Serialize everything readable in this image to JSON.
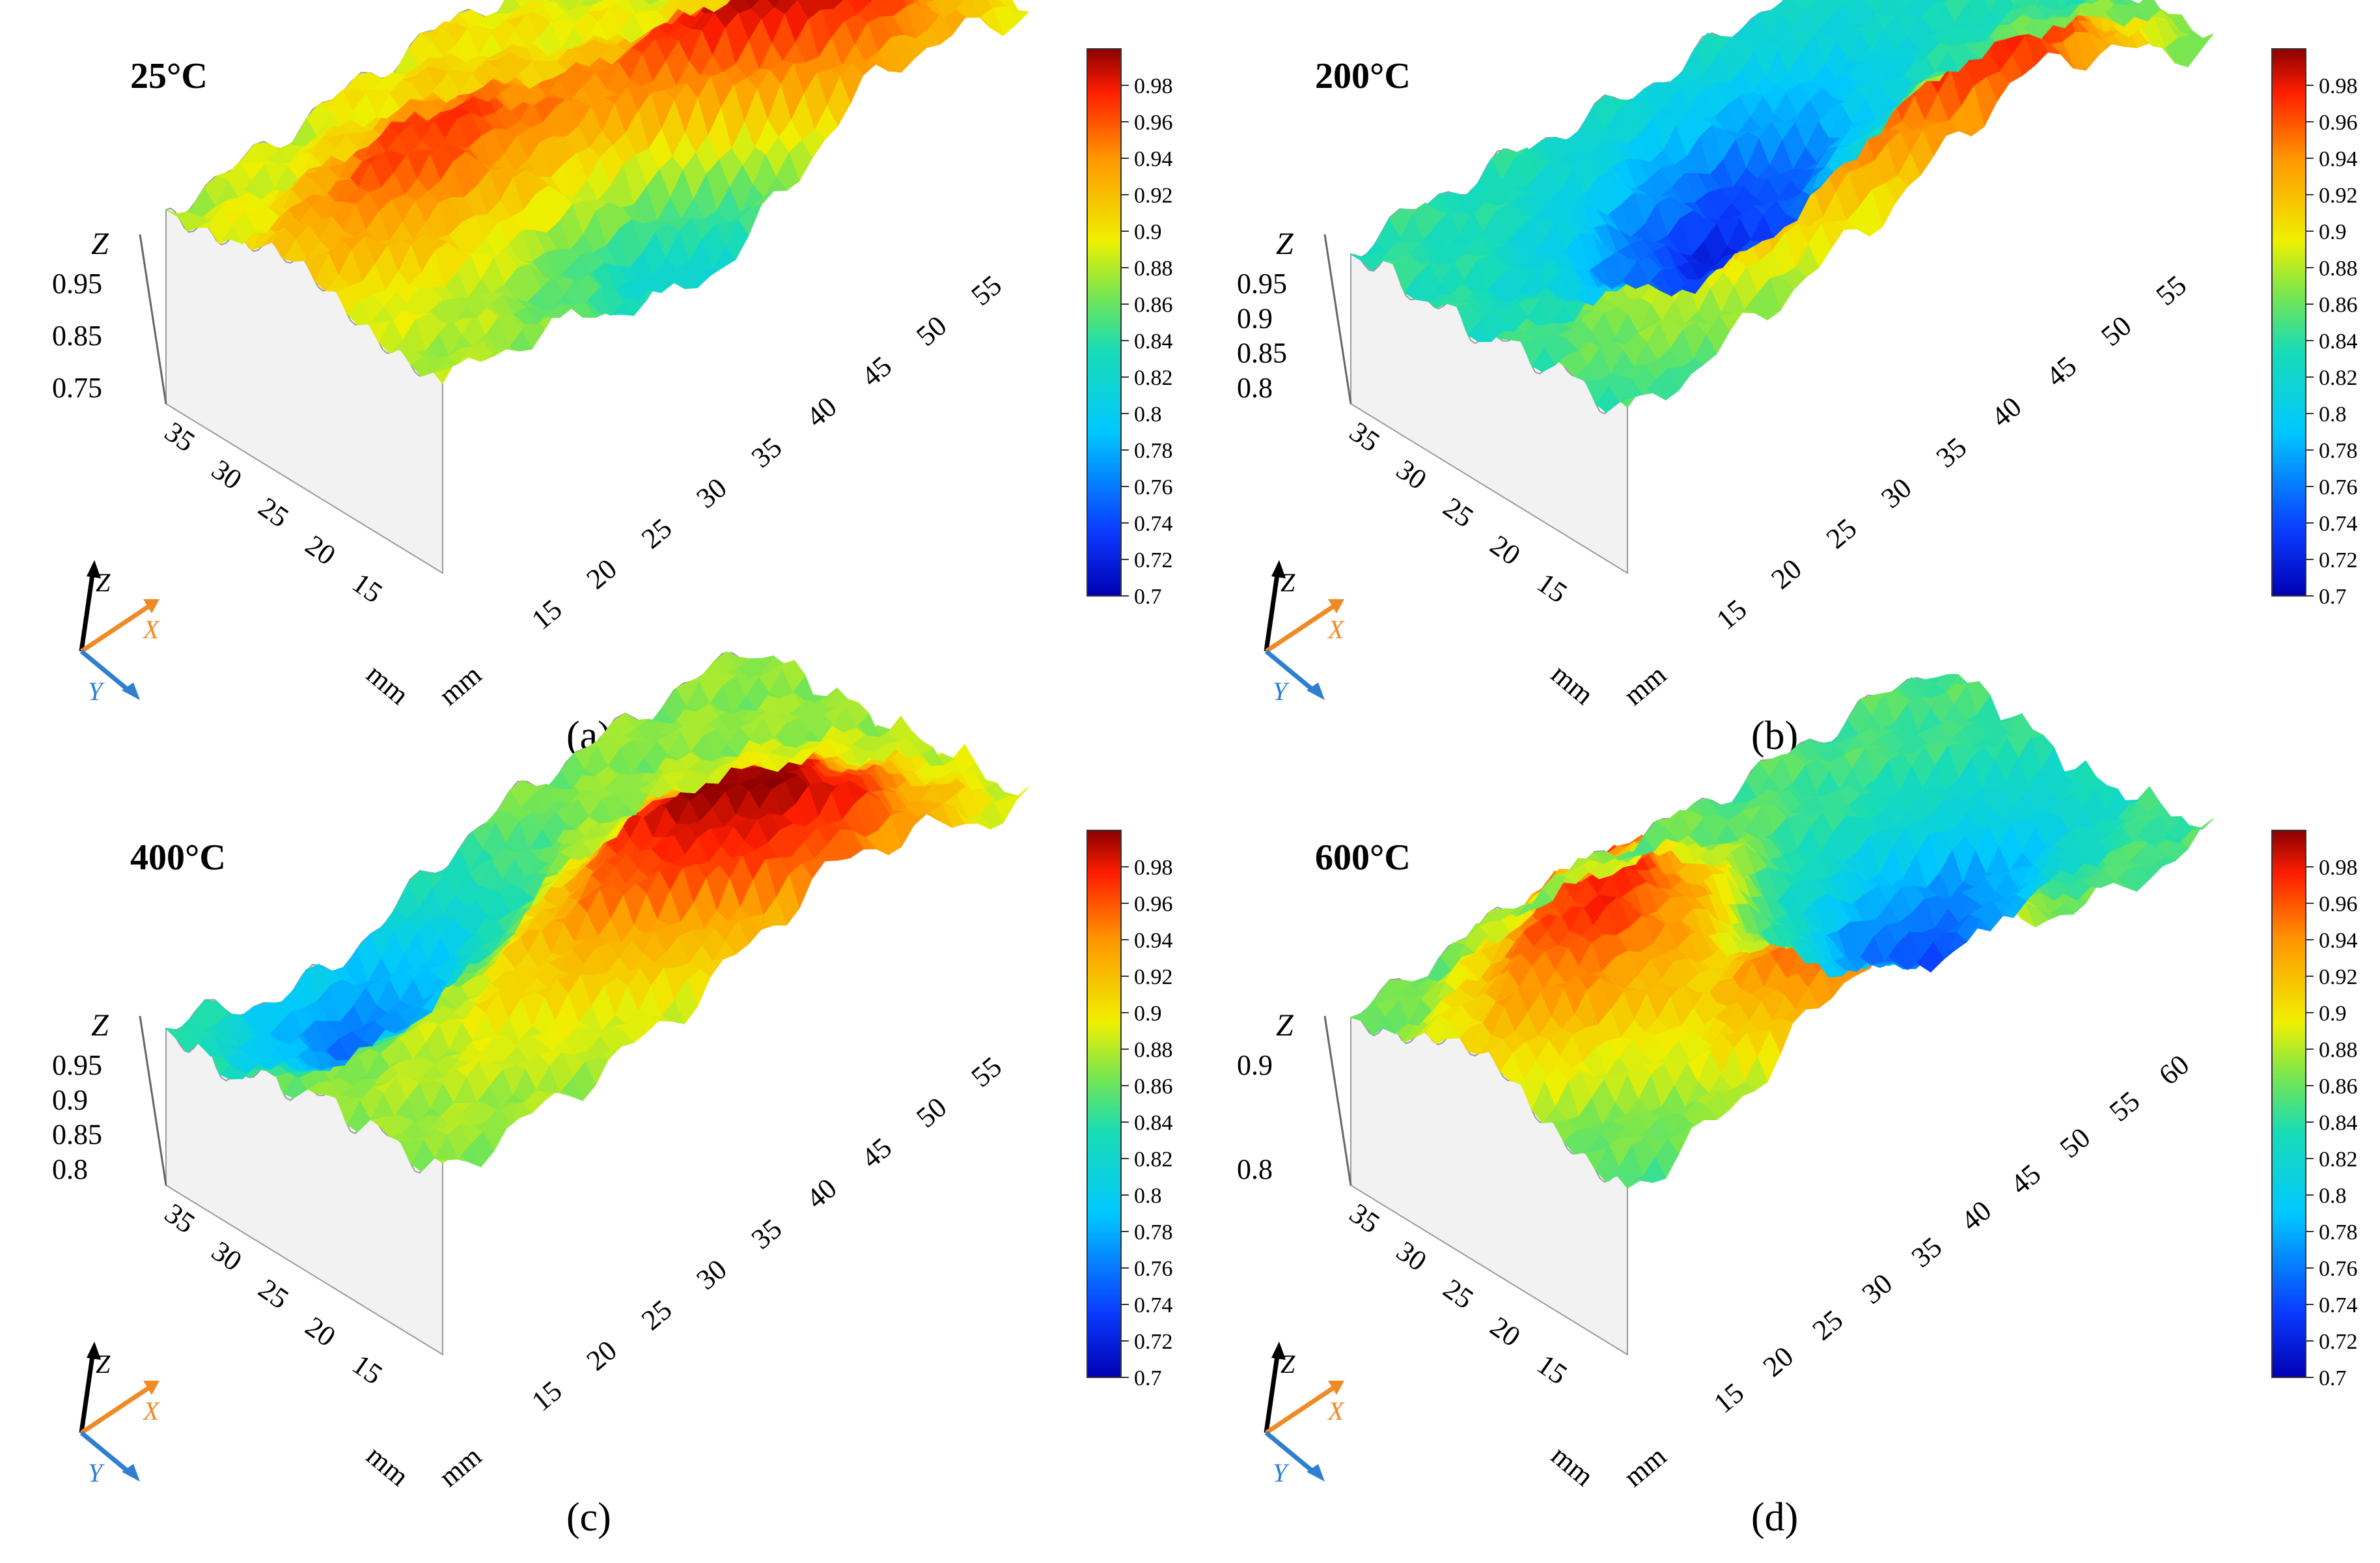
{
  "figure": {
    "description_free": true
  },
  "chart_data": [
    {
      "type": "surface3d",
      "panel": "(a)",
      "title": "25°C",
      "z_axis": {
        "label": "Z",
        "ticks": [
          "0.95",
          "0.85",
          "0.75"
        ]
      },
      "y_axis": {
        "ticks": [
          "35",
          "30",
          "25",
          "20",
          "15"
        ],
        "unit": "mm"
      },
      "x_axis": {
        "ticks": [
          "15",
          "20",
          "25",
          "30",
          "35",
          "40",
          "45",
          "50",
          "55"
        ],
        "unit": "mm"
      },
      "colorbar": {
        "ticks": [
          "0.98",
          "0.96",
          "0.94",
          "0.92",
          "0.9",
          "0.88",
          "0.86",
          "0.84",
          "0.82",
          "0.8",
          "0.78",
          "0.76",
          "0.74",
          "0.72",
          "0.7"
        ],
        "range": [
          0.7,
          1.0
        ]
      },
      "surface_peaks": [
        {
          "x": 0.22,
          "y": 0.55,
          "z": 0.97
        },
        {
          "x": 0.62,
          "y": 0.35,
          "z": 0.97
        },
        {
          "x": 0.72,
          "y": 0.15,
          "z": 0.98
        },
        {
          "x": 0.5,
          "y": 0.1,
          "z": 0.78
        },
        {
          "x": 0.45,
          "y": 0.9,
          "z": 0.9
        }
      ],
      "base_z": 0.88
    },
    {
      "type": "surface3d",
      "panel": "(b)",
      "title": "200°C",
      "z_axis": {
        "label": "Z",
        "ticks": [
          "0.95",
          "0.9",
          "0.85",
          "0.8"
        ]
      },
      "y_axis": {
        "ticks": [
          "35",
          "30",
          "25",
          "20",
          "15"
        ],
        "unit": "mm"
      },
      "x_axis": {
        "ticks": [
          "15",
          "20",
          "25",
          "30",
          "35",
          "40",
          "45",
          "50",
          "55"
        ],
        "unit": "mm"
      },
      "colorbar": {
        "ticks": [
          "0.98",
          "0.96",
          "0.94",
          "0.92",
          "0.9",
          "0.88",
          "0.86",
          "0.84",
          "0.82",
          "0.8",
          "0.78",
          "0.76",
          "0.74",
          "0.72",
          "0.7"
        ],
        "range": [
          0.7,
          1.0
        ]
      },
      "surface_peaks": [
        {
          "x": 0.35,
          "y": 0.25,
          "z": 0.95
        },
        {
          "x": 0.7,
          "y": 0.12,
          "z": 0.98
        },
        {
          "x": 0.4,
          "y": 0.55,
          "z": 0.74
        },
        {
          "x": 0.55,
          "y": 0.75,
          "z": 0.78
        }
      ],
      "base_z": 0.84
    },
    {
      "type": "surface3d",
      "panel": "(c)",
      "title": "400°C",
      "z_axis": {
        "label": "Z",
        "ticks": [
          "0.95",
          "0.9",
          "0.85",
          "0.8"
        ]
      },
      "y_axis": {
        "ticks": [
          "35",
          "30",
          "25",
          "20",
          "15"
        ],
        "unit": "mm"
      },
      "x_axis": {
        "ticks": [
          "15",
          "20",
          "25",
          "30",
          "35",
          "40",
          "45",
          "50",
          "55"
        ],
        "unit": "mm"
      },
      "colorbar": {
        "ticks": [
          "0.98",
          "0.96",
          "0.94",
          "0.92",
          "0.9",
          "0.88",
          "0.86",
          "0.84",
          "0.82",
          "0.8",
          "0.78",
          "0.76",
          "0.74",
          "0.72",
          "0.7"
        ],
        "range": [
          0.7,
          1.0
        ]
      },
      "surface_peaks": [
        {
          "x": 0.62,
          "y": 0.4,
          "z": 0.97
        },
        {
          "x": 0.7,
          "y": 0.12,
          "z": 0.96
        },
        {
          "x": 0.25,
          "y": 0.85,
          "z": 0.76
        },
        {
          "x": 0.35,
          "y": 0.3,
          "z": 0.9
        }
      ],
      "base_z": 0.87
    },
    {
      "type": "surface3d",
      "panel": "(d)",
      "title": "600°C",
      "z_axis": {
        "label": "Z",
        "ticks": [
          "0.9",
          "0.8"
        ]
      },
      "y_axis": {
        "ticks": [
          "35",
          "30",
          "25",
          "20",
          "15"
        ],
        "unit": "mm"
      },
      "x_axis": {
        "ticks": [
          "15",
          "20",
          "25",
          "30",
          "35",
          "40",
          "45",
          "50",
          "55",
          "60"
        ],
        "unit": "mm"
      },
      "colorbar": {
        "ticks": [
          "0.98",
          "0.96",
          "0.94",
          "0.92",
          "0.9",
          "0.88",
          "0.86",
          "0.84",
          "0.82",
          "0.8",
          "0.78",
          "0.76",
          "0.74",
          "0.72",
          "0.7"
        ],
        "range": [
          0.7,
          1.0
        ]
      },
      "surface_peaks": [
        {
          "x": 0.45,
          "y": 0.12,
          "z": 0.98
        },
        {
          "x": 0.3,
          "y": 0.7,
          "z": 0.95
        },
        {
          "x": 0.7,
          "y": 0.45,
          "z": 0.74
        },
        {
          "x": 0.15,
          "y": 0.5,
          "z": 0.92
        }
      ],
      "base_z": 0.85
    }
  ],
  "axis_triad": {
    "z": "Z",
    "x": "X",
    "y": "Y",
    "colors": {
      "z": "#000000",
      "x": "#f08a24",
      "y": "#2f7fd0"
    }
  },
  "panel_labels": [
    "(a)",
    "(b)",
    "(c)",
    "(d)"
  ],
  "unit_label": "mm"
}
